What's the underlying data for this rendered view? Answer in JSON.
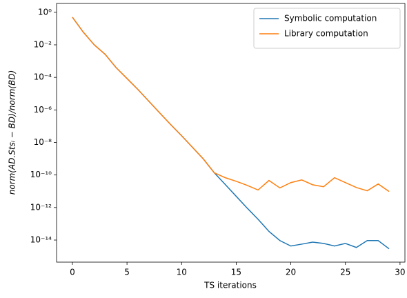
{
  "chart_data": {
    "type": "line",
    "x_label": "TS iterations",
    "y_label": "norm(AD.Stsᵢ − BD)/norm(BD)",
    "log_y": true,
    "legend": "upper right",
    "x": [
      0,
      1,
      2,
      3,
      4,
      5,
      6,
      7,
      8,
      9,
      10,
      11,
      12,
      13,
      14,
      15,
      16,
      17,
      18,
      19,
      20,
      21,
      22,
      23,
      24,
      25,
      26,
      27,
      28,
      29
    ],
    "series": [
      {
        "name": "Symbolic computation",
        "color": "#1f77b4",
        "values": [
          0.5,
          0.06,
          0.01,
          0.0026,
          0.0004,
          8.5e-05,
          1.8e-05,
          3.4e-06,
          6.5e-07,
          1.25e-07,
          2.6e-08,
          5e-09,
          9.5e-10,
          1.35e-10,
          2.6e-11,
          4.9e-12,
          9.3e-13,
          1.9e-13,
          3.4e-14,
          9.3e-15,
          4.3e-15,
          5.6e-15,
          7.5e-15,
          6.2e-15,
          4.3e-15,
          6.2e-15,
          3.5e-15,
          9.3e-15,
          9.3e-15,
          2.9e-15
        ]
      },
      {
        "name": "Library computation",
        "color": "#ff7f0e",
        "values": [
          0.5,
          0.06,
          0.01,
          0.0026,
          0.0004,
          8.5e-05,
          1.8e-05,
          3.4e-06,
          6.5e-07,
          1.25e-07,
          2.6e-08,
          5e-09,
          9.5e-10,
          1.35e-10,
          6.8e-11,
          4.1e-11,
          2.3e-11,
          1.2e-11,
          4.6e-11,
          1.6e-11,
          3.4e-11,
          5e-11,
          2.5e-11,
          1.9e-11,
          6.8e-11,
          3.4e-11,
          1.7e-11,
          1.07e-11,
          2.8e-11,
          9.6e-12
        ]
      }
    ],
    "xlim": [
      -1.45,
      30.45
    ],
    "xticks": [
      0,
      5,
      10,
      15,
      20,
      25,
      30
    ],
    "ylim": [
      4.4e-16,
      3.5
    ],
    "yticks": [
      {
        "value": 1,
        "label": "10⁰"
      },
      {
        "value": 0.01,
        "label": "10⁻²"
      },
      {
        "value": 0.0001,
        "label": "10⁻⁴"
      },
      {
        "value": 1e-06,
        "label": "10⁻⁶"
      },
      {
        "value": 1e-08,
        "label": "10⁻⁸"
      },
      {
        "value": 1e-10,
        "label": "10⁻¹⁰"
      },
      {
        "value": 1e-12,
        "label": "10⁻¹²"
      },
      {
        "value": 1e-14,
        "label": "10⁻¹⁴"
      }
    ]
  }
}
